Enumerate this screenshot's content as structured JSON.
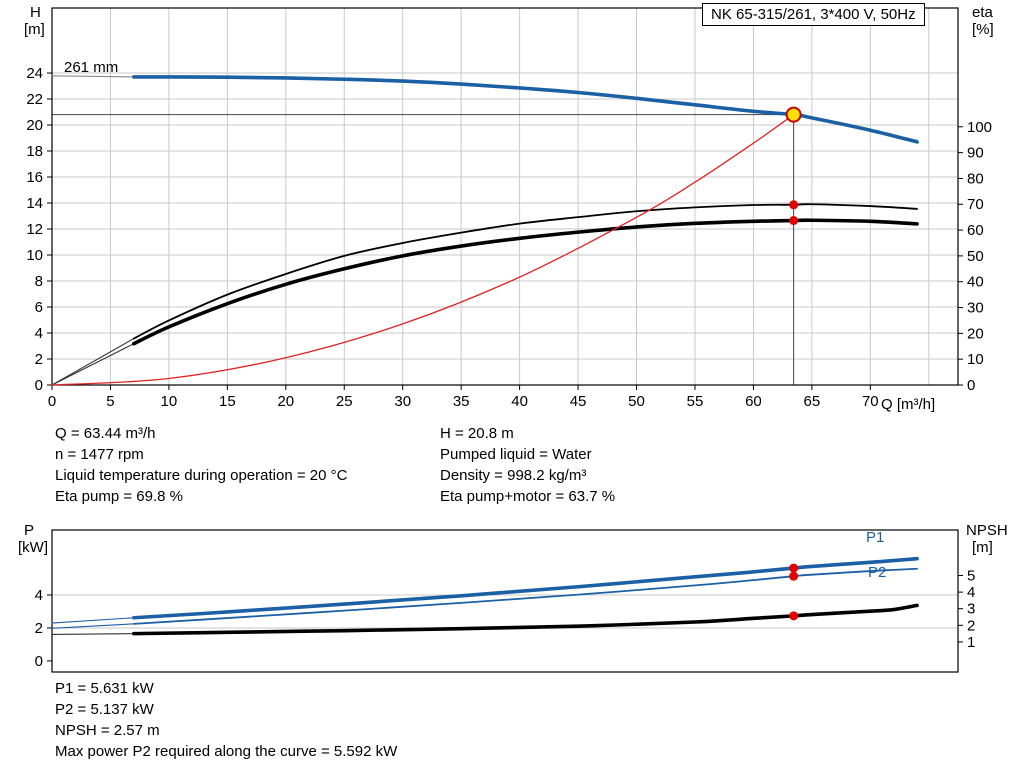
{
  "accent_blue": "#1b5fa5",
  "accent_red": "#e02424",
  "grid_color": "#c9c9c9",
  "chart_data": [
    {
      "id": "head-efficiency-chart",
      "type": "line",
      "title": "NK 65-315/261, 3*400 V, 50Hz",
      "x": {
        "min": 0,
        "max": 77.5,
        "label": "Q [m³/h]",
        "ticks": [
          0,
          5,
          10,
          15,
          20,
          25,
          30,
          35,
          40,
          45,
          50,
          55,
          60,
          65,
          70
        ],
        "grid": [
          5,
          10,
          15,
          20,
          25,
          30,
          35,
          40,
          45,
          50,
          55,
          60,
          65,
          70,
          75
        ]
      },
      "y_left": {
        "min": 0,
        "max": 29,
        "label_lines": [
          "H",
          "[m]"
        ],
        "ticks": [
          0,
          2,
          4,
          6,
          8,
          10,
          12,
          14,
          16,
          18,
          20,
          22,
          24
        ],
        "grid": [
          2,
          4,
          6,
          8,
          10,
          12,
          14,
          16,
          18,
          20,
          22,
          24
        ]
      },
      "y_right": {
        "min": 0,
        "max": 146,
        "label_lines": [
          "eta",
          "[%]"
        ],
        "ticks": [
          0,
          10,
          20,
          30,
          40,
          50,
          60,
          70,
          80,
          90,
          100
        ]
      },
      "crosshair": {
        "q": 63.44,
        "h": 20.8
      },
      "series": [
        {
          "name": "261 mm",
          "axis": "left",
          "color": "#1b5fa5",
          "width": 3.6,
          "lead_color": "#888888",
          "lead": [
            [
              0,
              23.78
            ],
            [
              7,
              23.7
            ]
          ],
          "x": [
            7,
            10,
            15,
            20,
            25,
            30,
            35,
            40,
            45,
            50,
            55,
            60,
            63.44,
            65,
            70,
            74
          ],
          "y": [
            23.7,
            23.7,
            23.68,
            23.62,
            23.52,
            23.38,
            23.15,
            22.85,
            22.5,
            22.05,
            21.55,
            21.05,
            20.8,
            20.55,
            19.6,
            18.7
          ]
        },
        {
          "name": "eta-pump",
          "axis": "right",
          "color": "#000000",
          "width": 1.8,
          "lead_color": "#333333",
          "lead": [
            [
              0,
              0
            ],
            [
              7,
              18
            ]
          ],
          "x": [
            7,
            10,
            15,
            20,
            25,
            30,
            35,
            40,
            45,
            50,
            55,
            60,
            63.44,
            65,
            70,
            74
          ],
          "y": [
            18,
            25,
            35,
            43,
            50,
            55,
            59,
            62.5,
            65,
            67.3,
            68.8,
            69.7,
            69.8,
            70,
            69.3,
            68.2
          ]
        },
        {
          "name": "eta-pump-plus-motor",
          "axis": "right",
          "color": "#000000",
          "width": 3.6,
          "lead_color": "#333333",
          "lead": [
            [
              0,
              0
            ],
            [
              7,
              16
            ]
          ],
          "x": [
            7,
            10,
            15,
            20,
            25,
            30,
            35,
            40,
            45,
            50,
            55,
            60,
            63.44,
            65,
            70,
            74
          ],
          "y": [
            16,
            22.5,
            31.5,
            39,
            45,
            50,
            53.8,
            56.8,
            59.2,
            61.2,
            62.6,
            63.4,
            63.7,
            63.8,
            63.4,
            62.4
          ]
        },
        {
          "name": "system-curve",
          "axis": "left",
          "color": "#e02424",
          "width": 1.3,
          "x": [
            0,
            10,
            20,
            30,
            40,
            50,
            55,
            60,
            63.44
          ],
          "y": [
            0,
            0.5,
            2.1,
            4.7,
            8.3,
            12.9,
            15.6,
            18.6,
            20.8
          ]
        }
      ],
      "markers": [
        {
          "x": 63.44,
          "y": 20.8,
          "axis": "left",
          "type": "duty-point",
          "fill": "#ffdf00",
          "stroke": "#c00000",
          "r": 7
        },
        {
          "x": 63.44,
          "y": 69.8,
          "axis": "right",
          "type": "dot",
          "fill": "#e00000",
          "r": 4.5
        },
        {
          "x": 63.44,
          "y": 63.7,
          "axis": "right",
          "type": "dot",
          "fill": "#e00000",
          "r": 4.5
        }
      ]
    },
    {
      "id": "power-npsh-chart",
      "type": "line",
      "title": "",
      "x": {
        "min": 0,
        "max": 77.5,
        "label": "",
        "ticks": [],
        "grid": []
      },
      "y_left": {
        "min": -0.67,
        "max": 7.94,
        "label_lines": [
          "P",
          "[kW]"
        ],
        "ticks": [
          0,
          2,
          4
        ],
        "grid": [
          2,
          4
        ]
      },
      "y_right": {
        "min": -0.81,
        "max": 7.74,
        "label_lines": [
          "NPSH",
          "[m]"
        ],
        "ticks": [
          1,
          2,
          3,
          4,
          5
        ]
      },
      "series": [
        {
          "name": "P1",
          "axis": "left",
          "color": "#1b5fa5",
          "width": 3.6,
          "lead_color": "#1b5fa5",
          "lead": [
            [
              0,
              2.3
            ],
            [
              7,
              2.62
            ]
          ],
          "x": [
            7,
            15,
            25,
            35,
            45,
            55,
            60,
            63.44,
            65,
            70,
            74
          ],
          "y": [
            2.62,
            2.97,
            3.45,
            3.95,
            4.5,
            5.1,
            5.4,
            5.63,
            5.73,
            5.98,
            6.2
          ]
        },
        {
          "name": "P2",
          "axis": "left",
          "color": "#1b5fa5",
          "width": 1.8,
          "lead_color": "#1b5fa5",
          "lead": [
            [
              0,
              1.98
            ],
            [
              7,
              2.25
            ]
          ],
          "x": [
            7,
            15,
            25,
            35,
            45,
            55,
            60,
            63.44,
            65,
            70,
            74
          ],
          "y": [
            2.25,
            2.6,
            3.05,
            3.52,
            4.02,
            4.58,
            4.9,
            5.14,
            5.23,
            5.45,
            5.59
          ]
        },
        {
          "name": "NPSH",
          "axis": "right",
          "color": "#000000",
          "width": 3.6,
          "lead_color": "#333333",
          "lead": [
            [
              0,
              1.45
            ],
            [
              7,
              1.5
            ]
          ],
          "x": [
            7,
            15,
            25,
            35,
            45,
            55,
            60,
            63.44,
            65,
            70,
            72,
            74
          ],
          "y": [
            1.5,
            1.58,
            1.68,
            1.8,
            1.95,
            2.2,
            2.42,
            2.57,
            2.65,
            2.85,
            2.95,
            3.2
          ]
        }
      ],
      "markers": [
        {
          "x": 63.44,
          "y": 5.63,
          "axis": "left",
          "type": "dot",
          "fill": "#e00000",
          "r": 4.5
        },
        {
          "x": 63.44,
          "y": 5.14,
          "axis": "left",
          "type": "dot",
          "fill": "#e00000",
          "r": 4.5
        },
        {
          "x": 63.44,
          "y": 2.57,
          "axis": "right",
          "type": "dot",
          "fill": "#e00000",
          "r": 4.5
        }
      ]
    }
  ],
  "info_mid": {
    "left": [
      "Q = 63.44 m³/h",
      "n = 1477 rpm",
      "Liquid temperature during operation = 20 °C",
      "Eta pump = 69.8 %"
    ],
    "right": [
      "H = 20.8 m",
      "Pumped liquid = Water",
      "Density = 998.2 kg/m³",
      "Eta pump+motor = 63.7 %"
    ]
  },
  "info_bottom": [
    "P1 = 5.631 kW",
    "P2 = 5.137 kW",
    "NPSH = 2.57 m",
    "Max power P2 required along the curve = 5.592 kW"
  ]
}
